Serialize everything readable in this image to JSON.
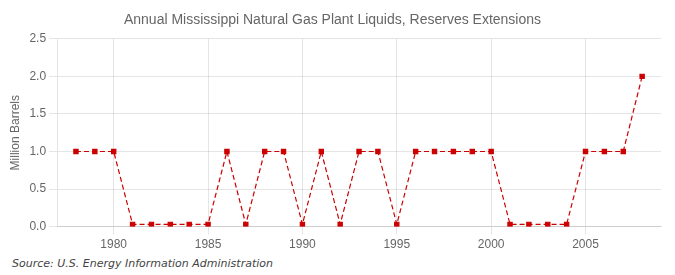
{
  "chart_data": {
    "type": "line",
    "title": "Annual Mississippi Natural Gas Plant Liquids, Reserves Extensions",
    "ylabel": "Million Barrels",
    "annotation": "Source: U.S. Energy Information Administration",
    "x": [
      1978,
      1979,
      1980,
      1981,
      1982,
      1983,
      1984,
      1985,
      1986,
      1987,
      1988,
      1989,
      1990,
      1991,
      1992,
      1993,
      1994,
      1995,
      1996,
      1997,
      1998,
      1999,
      2000,
      2001,
      2002,
      2003,
      2004,
      2005,
      2006,
      2007,
      2008
    ],
    "values": [
      1.0,
      1.0,
      1.0,
      0.03,
      0.03,
      0.03,
      0.03,
      0.03,
      1.0,
      0.03,
      1.0,
      1.0,
      0.03,
      1.0,
      0.03,
      1.0,
      1.0,
      0.03,
      1.0,
      1.0,
      1.0,
      1.0,
      1.0,
      0.03,
      0.03,
      0.03,
      0.03,
      1.0,
      1.0,
      1.0,
      2.0
    ],
    "color": "#cc0000",
    "marker": "square",
    "line_style": "dashed",
    "xlim": [
      1977,
      2009
    ],
    "xticks": [
      1980,
      1985,
      1990,
      1995,
      2000,
      2005
    ],
    "ylim": [
      0.0,
      2.5
    ],
    "yticks": [
      {
        "value": 0.0,
        "label": "0.0"
      },
      0.5,
      {
        "value": 1.0,
        "label": "1.0"
      },
      1.5,
      {
        "value": 2.0,
        "label": "2.0"
      },
      2.5
    ],
    "grid": true
  }
}
